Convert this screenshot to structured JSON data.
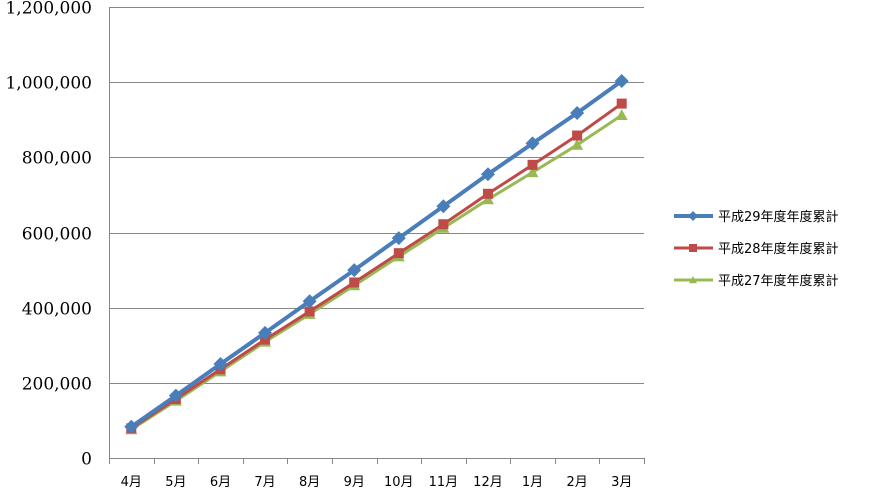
{
  "chart_data": {
    "type": "line",
    "categories": [
      "4月",
      "5月",
      "6月",
      "7月",
      "8月",
      "9月",
      "10月",
      "11月",
      "12月",
      "1月",
      "2月",
      "3月"
    ],
    "ylim": [
      0,
      1200000
    ],
    "yticks": [
      "0",
      "200,000",
      "400,000",
      "600,000",
      "800,000",
      "1,000,000",
      "1,200,000"
    ],
    "grid": true,
    "legend_position": "right",
    "series": [
      {
        "name": "平成29年度年度累計",
        "color": "#4a7ebb",
        "marker": "diamond",
        "values": [
          83000,
          166000,
          250000,
          333000,
          417000,
          500000,
          585000,
          670000,
          755000,
          837000,
          918000,
          1003000
        ]
      },
      {
        "name": "平成28年度年度累計",
        "color": "#be4b48",
        "marker": "square",
        "values": [
          79000,
          157000,
          236000,
          315000,
          390000,
          467000,
          545000,
          622000,
          703000,
          780000,
          858000,
          943000
        ]
      },
      {
        "name": "平成27年度年度累計",
        "color": "#98b954",
        "marker": "triangle",
        "values": [
          76000,
          152000,
          230000,
          309000,
          383000,
          459000,
          536000,
          612000,
          688000,
          760000,
          833000,
          912000
        ]
      }
    ]
  }
}
